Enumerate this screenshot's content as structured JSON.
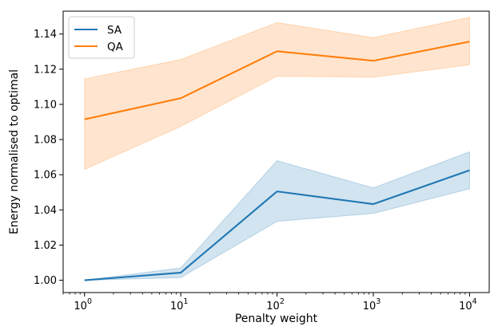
{
  "chart_data": {
    "type": "line",
    "xscale": "log",
    "x": [
      1,
      10,
      100,
      1000,
      10000
    ],
    "x_ticks": [
      {
        "value": 1,
        "base": "10",
        "exp": "0"
      },
      {
        "value": 10,
        "base": "10",
        "exp": "1"
      },
      {
        "value": 100,
        "base": "10",
        "exp": "2"
      },
      {
        "value": 1000,
        "base": "10",
        "exp": "3"
      },
      {
        "value": 10000,
        "base": "10",
        "exp": "4"
      }
    ],
    "xlabel": "Penalty weight",
    "ylabel": "Energy normalised to optimal",
    "ylim": [
      0.993,
      1.153
    ],
    "xlim": [
      0.6,
      16000
    ],
    "y_ticks": [
      1.0,
      1.02,
      1.04,
      1.06,
      1.08,
      1.1,
      1.12,
      1.14
    ],
    "y_tick_labels": [
      "1.00",
      "1.02",
      "1.04",
      "1.06",
      "1.08",
      "1.10",
      "1.12",
      "1.14"
    ],
    "grid": false,
    "legend_position": "top-left",
    "series": [
      {
        "name": "SA",
        "color": "#1f77b4",
        "values": [
          1.0,
          1.0043,
          1.0505,
          1.0433,
          1.0625
        ],
        "lower": [
          1.0,
          1.0015,
          1.0335,
          1.038,
          1.052
        ],
        "upper": [
          1.0,
          1.007,
          1.068,
          1.0525,
          1.073
        ]
      },
      {
        "name": "QA",
        "color": "#ff7f0e",
        "values": [
          1.0915,
          1.1035,
          1.1302,
          1.1248,
          1.1357
        ],
        "lower": [
          1.063,
          1.0875,
          1.116,
          1.1155,
          1.1225
        ],
        "upper": [
          1.1145,
          1.1255,
          1.1465,
          1.138,
          1.1495
        ]
      }
    ]
  }
}
